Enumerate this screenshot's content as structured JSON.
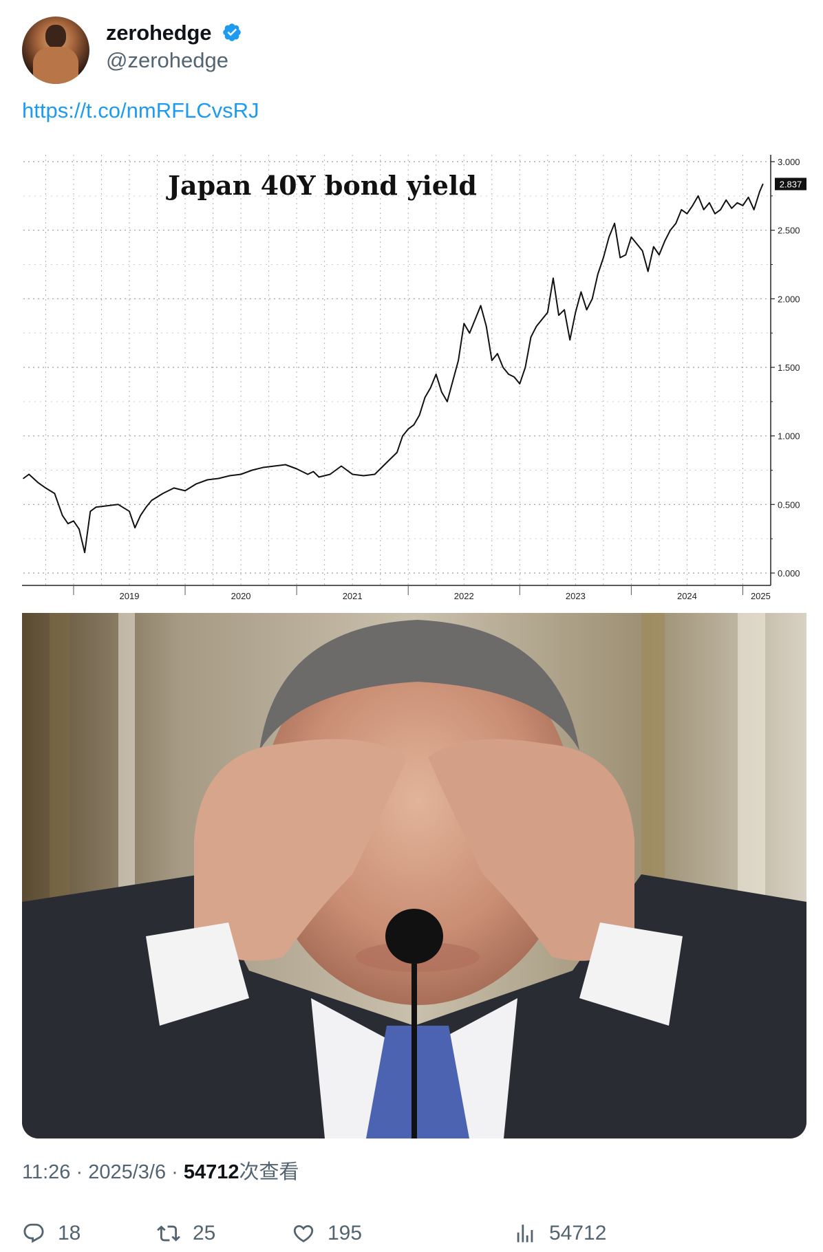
{
  "tweet": {
    "author": {
      "display_name": "zerohedge",
      "handle": "@zerohedge",
      "verified": true,
      "avatar_icon": "avatar-image"
    },
    "link_text": "https://t.co/nmRFLCvsRJ",
    "meta": {
      "time": "11:26",
      "sep1": " · ",
      "date": "2025/3/6",
      "sep2": " · ",
      "views": "54712",
      "views_suffix": "次查看"
    },
    "actions": {
      "replies": "18",
      "retweets": "25",
      "likes": "195",
      "views": "54712"
    },
    "colors": {
      "link": "#1d9bf0",
      "verified": "#1d9bf0",
      "secondary_text": "#536471"
    }
  },
  "chart_data": {
    "type": "line",
    "title": "Japan 40Y bond yield",
    "x_ticks": [
      "2019",
      "2020",
      "2021",
      "2022",
      "2023",
      "2024",
      "2025"
    ],
    "y_ticks": [
      "0.000",
      "0.500",
      "1.000",
      "1.500",
      "2.000",
      "2.500",
      "3.000"
    ],
    "ylim": [
      0,
      3.0
    ],
    "xlim": [
      2018.55,
      2025.25
    ],
    "grid": true,
    "last_value_label": "2.837",
    "series": [
      {
        "x": [
          2018.55,
          2018.6,
          2018.68,
          2018.75,
          2018.83,
          2018.9,
          2018.95,
          2019.0,
          2019.05,
          2019.1,
          2019.15,
          2019.2,
          2019.3,
          2019.4,
          2019.5,
          2019.55,
          2019.6,
          2019.65,
          2019.7,
          2019.8,
          2019.9,
          2020.0,
          2020.1,
          2020.2,
          2020.3,
          2020.4,
          2020.5,
          2020.6,
          2020.7,
          2020.8,
          2020.9,
          2021.0,
          2021.1,
          2021.15,
          2021.2,
          2021.3,
          2021.4,
          2021.5,
          2021.6,
          2021.7,
          2021.8,
          2021.9,
          2021.95,
          2022.0,
          2022.05,
          2022.1,
          2022.15,
          2022.2,
          2022.25,
          2022.3,
          2022.35,
          2022.4,
          2022.45,
          2022.5,
          2022.55,
          2022.6,
          2022.65,
          2022.7,
          2022.75,
          2022.8,
          2022.85,
          2022.9,
          2022.95,
          2023.0,
          2023.05,
          2023.1,
          2023.15,
          2023.2,
          2023.25,
          2023.3,
          2023.35,
          2023.4,
          2023.45,
          2023.5,
          2023.55,
          2023.6,
          2023.65,
          2023.7,
          2023.75,
          2023.8,
          2023.85,
          2023.9,
          2023.95,
          2024.0,
          2024.05,
          2024.1,
          2024.15,
          2024.2,
          2024.25,
          2024.3,
          2024.35,
          2024.4,
          2024.45,
          2024.5,
          2024.55,
          2024.6,
          2024.65,
          2024.7,
          2024.75,
          2024.8,
          2024.85,
          2024.9,
          2024.95,
          2025.0,
          2025.05,
          2025.1,
          2025.15,
          2025.18
        ],
        "y": [
          0.69,
          0.72,
          0.66,
          0.62,
          0.58,
          0.42,
          0.36,
          0.38,
          0.32,
          0.15,
          0.45,
          0.48,
          0.49,
          0.5,
          0.45,
          0.33,
          0.42,
          0.48,
          0.53,
          0.58,
          0.62,
          0.6,
          0.65,
          0.68,
          0.69,
          0.71,
          0.72,
          0.75,
          0.77,
          0.78,
          0.79,
          0.76,
          0.72,
          0.74,
          0.7,
          0.72,
          0.78,
          0.72,
          0.71,
          0.72,
          0.8,
          0.88,
          1.0,
          1.05,
          1.08,
          1.15,
          1.28,
          1.35,
          1.45,
          1.32,
          1.25,
          1.4,
          1.55,
          1.82,
          1.75,
          1.85,
          1.95,
          1.8,
          1.55,
          1.6,
          1.5,
          1.45,
          1.43,
          1.38,
          1.5,
          1.72,
          1.8,
          1.85,
          1.9,
          2.15,
          1.88,
          1.92,
          1.7,
          1.9,
          2.05,
          1.92,
          2.0,
          2.18,
          2.3,
          2.45,
          2.55,
          2.3,
          2.32,
          2.45,
          2.4,
          2.35,
          2.2,
          2.38,
          2.32,
          2.42,
          2.5,
          2.55,
          2.65,
          2.62,
          2.68,
          2.75,
          2.65,
          2.7,
          2.62,
          2.65,
          2.72,
          2.66,
          2.7,
          2.68,
          2.74,
          2.65,
          2.78,
          2.837
        ]
      }
    ]
  }
}
